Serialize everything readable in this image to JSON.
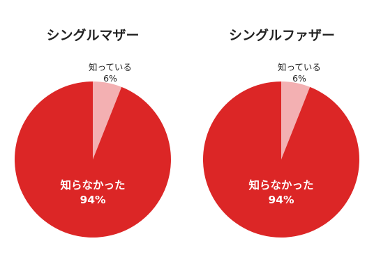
{
  "chart_data": [
    {
      "type": "pie",
      "title": "シングルマザー",
      "slices": [
        {
          "label": "知っている",
          "value": 6,
          "value_label": "6%",
          "color": "#f3b0b2"
        },
        {
          "label": "知らなかった",
          "value": 94,
          "value_label": "94%",
          "color": "#dc2626"
        }
      ]
    },
    {
      "type": "pie",
      "title": "シングルファザー",
      "slices": [
        {
          "label": "知っている",
          "value": 6,
          "value_label": "6%",
          "color": "#f3b0b2"
        },
        {
          "label": "知らなかった",
          "value": 94,
          "value_label": "94%",
          "color": "#dc2626"
        }
      ]
    }
  ]
}
